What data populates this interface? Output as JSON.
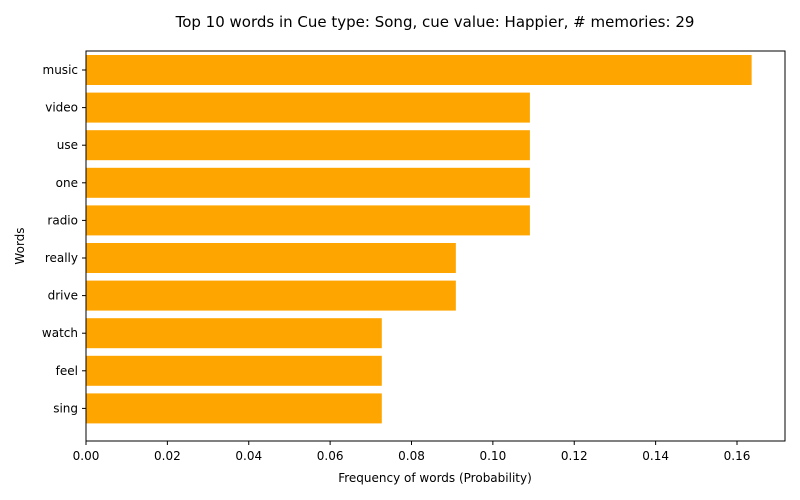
{
  "chart_data": {
    "type": "bar",
    "orientation": "horizontal",
    "title": "Top 10 words in Cue type: Song, cue value: Happier, # memories: 29",
    "xlabel": "Frequency of words (Probability)",
    "ylabel": "Words",
    "categories": [
      "music",
      "video",
      "use",
      "one",
      "radio",
      "really",
      "drive",
      "watch",
      "feel",
      "sing"
    ],
    "values": [
      0.1636,
      0.1091,
      0.1091,
      0.1091,
      0.1091,
      0.0909,
      0.0909,
      0.0727,
      0.0727,
      0.0727
    ],
    "xlim": [
      0,
      0.1718
    ],
    "xticks": [
      0.0,
      0.02,
      0.04,
      0.06,
      0.08,
      0.1,
      0.12,
      0.14,
      0.16
    ],
    "xtick_labels": [
      "0.00",
      "0.02",
      "0.04",
      "0.06",
      "0.08",
      "0.10",
      "0.12",
      "0.14",
      "0.16"
    ],
    "bar_color": "#ffa500",
    "grid": false,
    "legend": "none"
  }
}
